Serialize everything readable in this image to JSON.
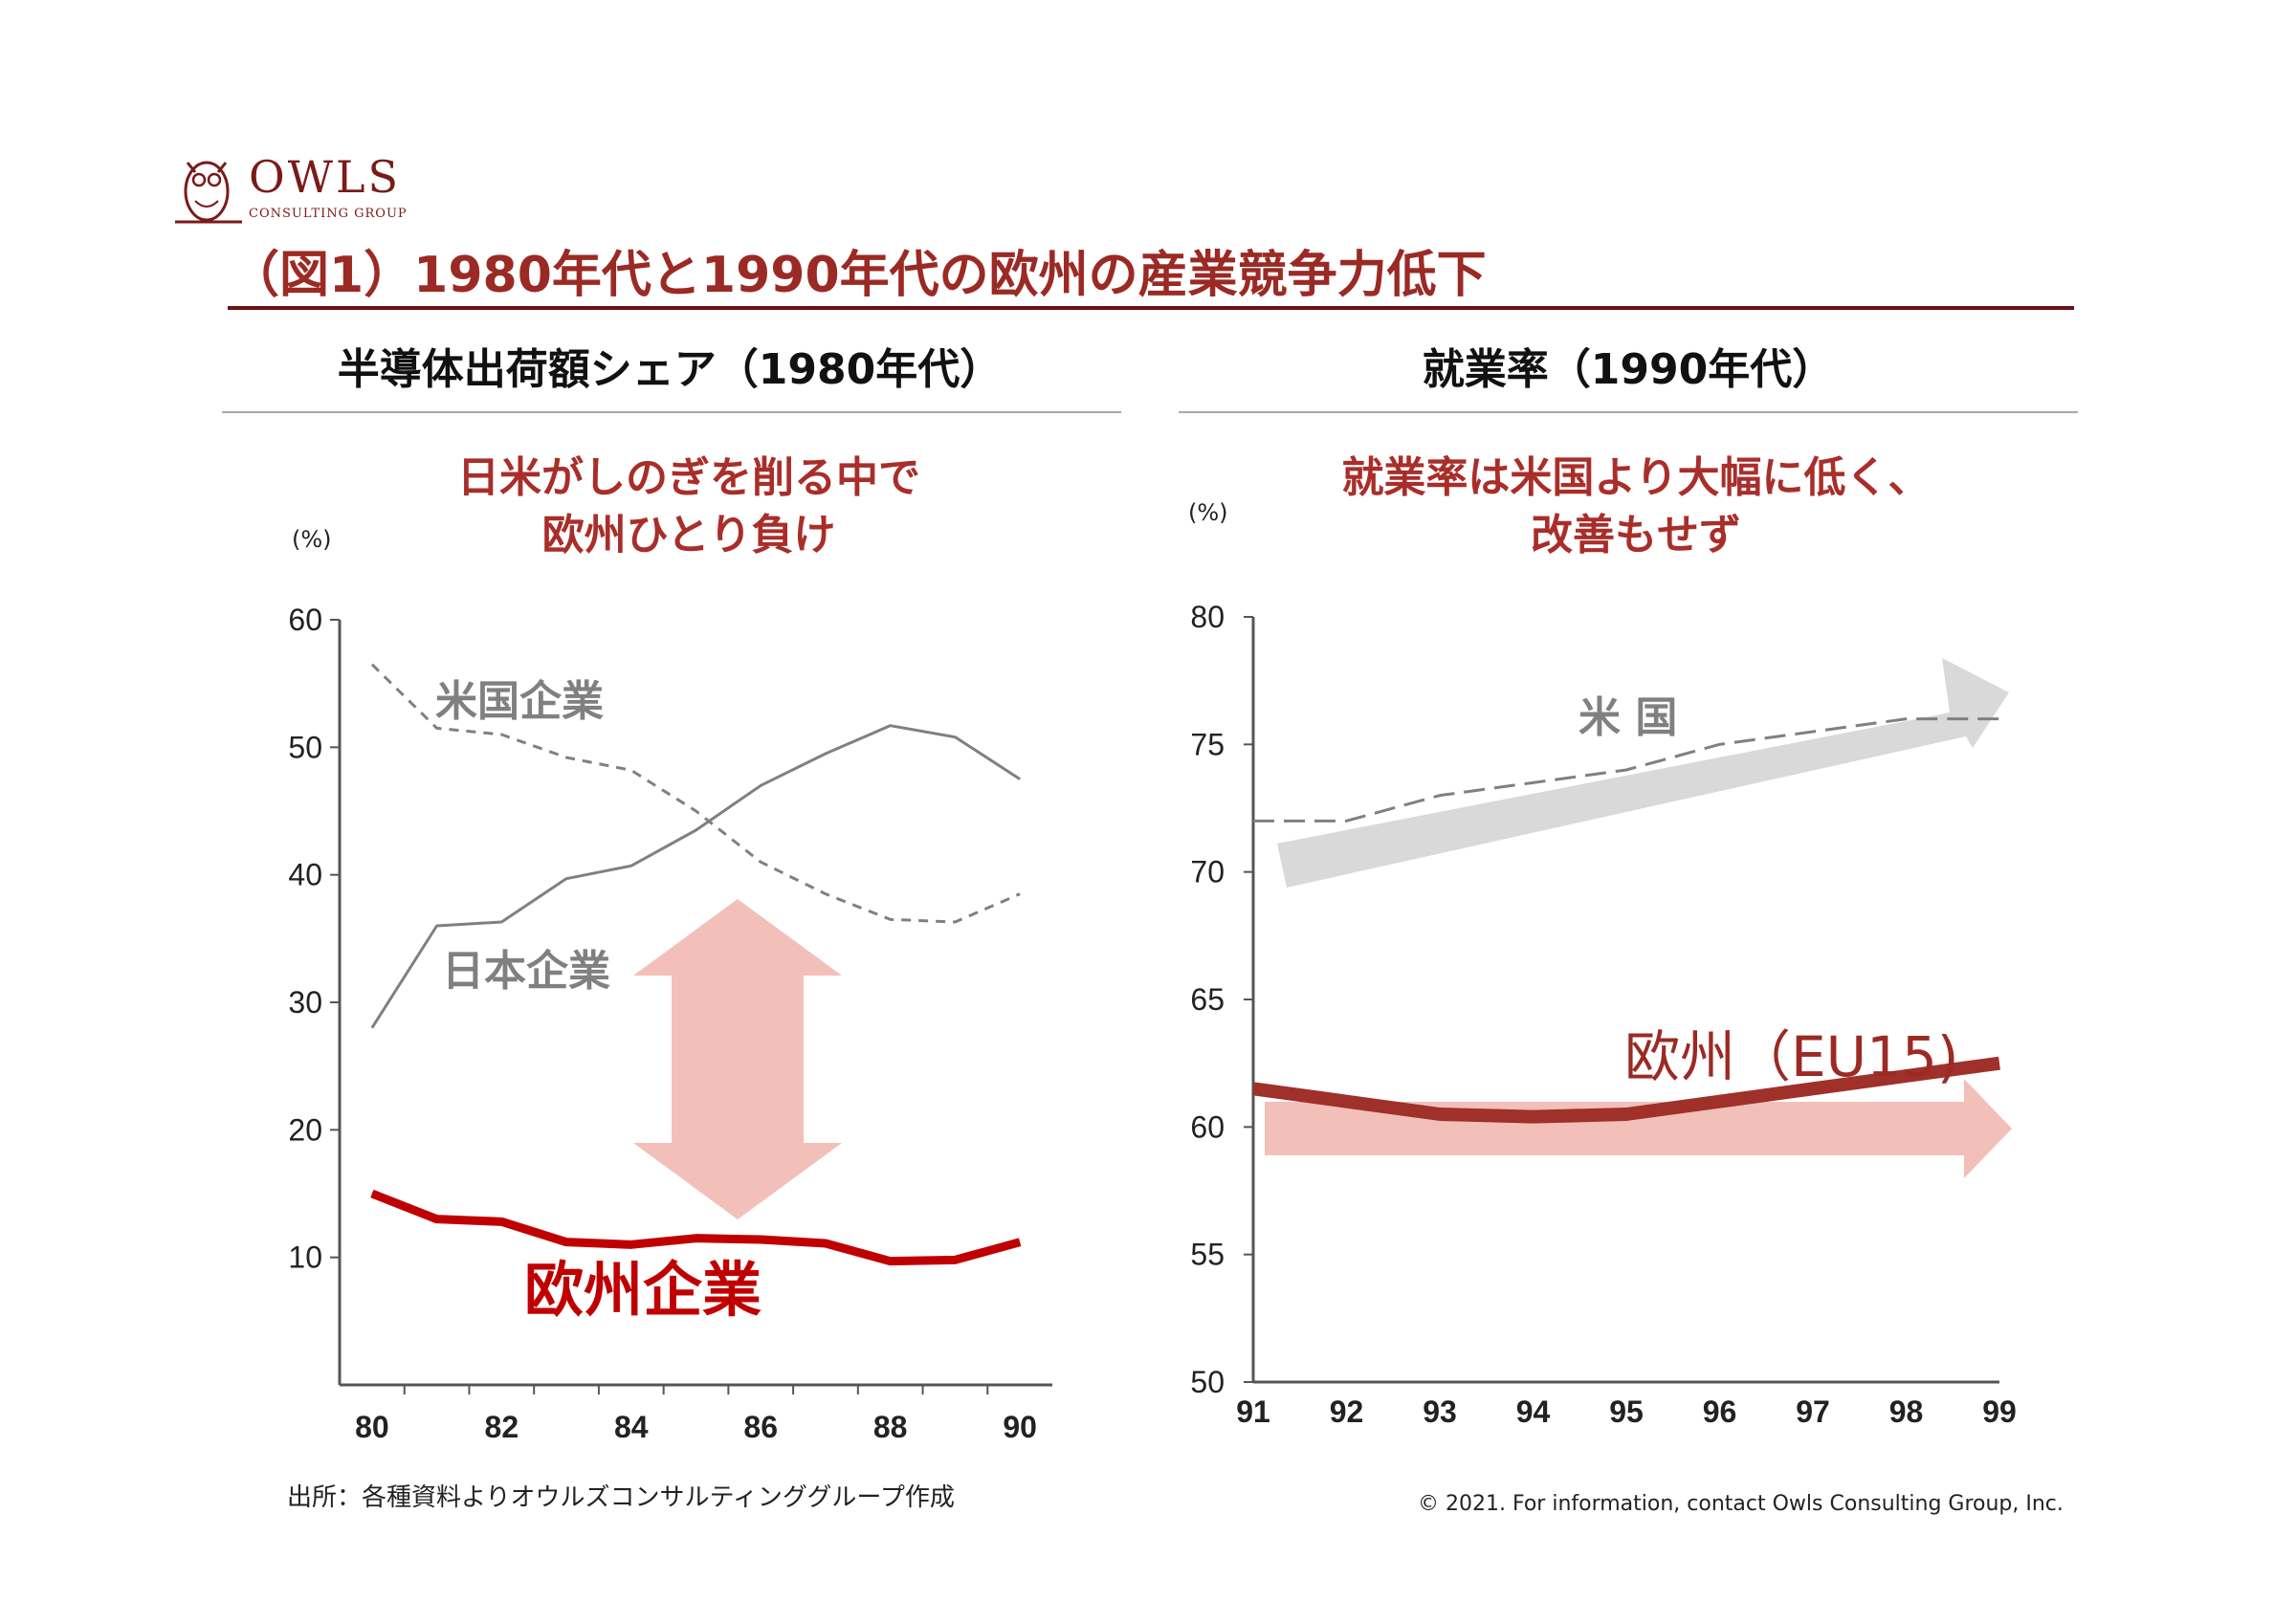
{
  "logo": {
    "word": "OWLS",
    "sub": "CONSULTING GROUP"
  },
  "title": "（図1）1980年代と1990年代の欧州の産業競争力低下",
  "source_note": "出所：各種資料よりオウルズコンサルティンググループ作成",
  "copyright": "© 2021. For information, contact Owls Consulting Group, Inc.",
  "colors": {
    "brand": "#7a1a1a",
    "accent_red": "#c00000",
    "dark_red": "#9b2a24",
    "gray": "#808080",
    "pink": "#f2c0b8",
    "light_gray": "#d9d9d9"
  },
  "left": {
    "panel_title": "半導体出荷額シェア（1980年代）",
    "subtitle_line1": "日米がしのぎを削る中で",
    "subtitle_line2": "欧州ひとり負け",
    "unit": "(%)",
    "annotation_arrow": "double-vertical-arrow"
  },
  "right": {
    "panel_title": "就業率（1990年代）",
    "subtitle_line1": "就業率は米国より大幅に低く、",
    "subtitle_line2": "改善もせず",
    "unit": "(%)",
    "annotation_arrows": [
      "up-trend-arrow",
      "flat-arrow"
    ]
  },
  "chart_data": [
    {
      "type": "line",
      "title": "半導体出荷額シェア（1980年代）",
      "xlabel": "",
      "ylabel": "(%)",
      "x": [
        80,
        81,
        82,
        83,
        84,
        85,
        86,
        87,
        88,
        89,
        90
      ],
      "x_tick_labels": [
        "80",
        "82",
        "84",
        "86",
        "88",
        "90"
      ],
      "y_ticks": [
        10,
        20,
        30,
        40,
        50,
        60
      ],
      "ylim": [
        0,
        60
      ],
      "grid": false,
      "series": [
        {
          "name": "米国企業",
          "color": "#808080",
          "dash": true,
          "values": [
            56.5,
            51.5,
            51,
            49.2,
            48.2,
            45,
            41,
            38.5,
            36.5,
            36.3,
            38.5
          ]
        },
        {
          "name": "日本企業",
          "color": "#808080",
          "dash": false,
          "values": [
            28,
            36,
            36.3,
            39.7,
            40.7,
            43.5,
            47,
            49.5,
            51.7,
            50.8,
            47.5
          ]
        },
        {
          "name": "欧州企業",
          "color": "#c00000",
          "dash": false,
          "values": [
            15,
            13,
            12.8,
            11.2,
            11,
            11.5,
            11.4,
            11.1,
            9.7,
            9.8,
            11.2
          ]
        }
      ]
    },
    {
      "type": "line",
      "title": "就業率（1990年代）",
      "xlabel": "",
      "ylabel": "(%)",
      "x": [
        91,
        92,
        93,
        94,
        95,
        96,
        97,
        98,
        99
      ],
      "x_tick_labels": [
        "91",
        "92",
        "93",
        "94",
        "95",
        "96",
        "97",
        "98",
        "99"
      ],
      "y_ticks": [
        50,
        55,
        60,
        65,
        70,
        75,
        80
      ],
      "ylim": [
        50,
        80
      ],
      "grid": false,
      "series": [
        {
          "name": "米 国",
          "color": "#808080",
          "dash": true,
          "values": [
            72,
            72,
            73,
            73.5,
            74,
            75,
            75.5,
            76,
            76
          ]
        },
        {
          "name": "欧州（EU15)",
          "color": "#a0302a",
          "dash": false,
          "values": [
            61.5,
            61,
            60.5,
            60.4,
            60.5,
            61,
            61.5,
            62,
            62.5
          ]
        }
      ]
    }
  ]
}
